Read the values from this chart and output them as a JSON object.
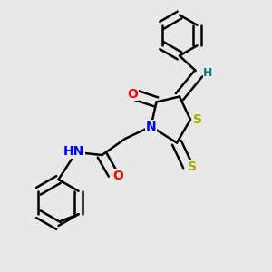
{
  "background_color": "#e8e8e8",
  "line_color": "#000000",
  "bond_width": 1.8,
  "atom_colors": {
    "N": "#0000ff",
    "O": "#ff0000",
    "S": "#aaaa00",
    "H": "#008080",
    "C": "#000000"
  },
  "font_size_atom": 10,
  "font_size_h": 9
}
